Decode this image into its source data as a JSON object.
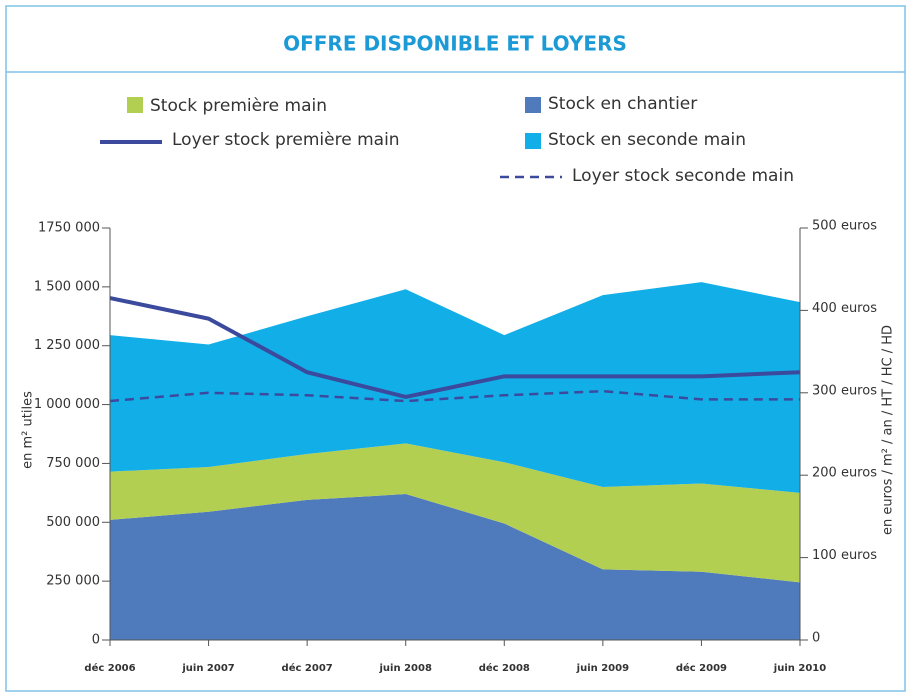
{
  "chart_data": {
    "type": "area",
    "title": "OFFRE DISPONIBLE ET LOYERS",
    "ylabel": "en m² utiles",
    "y2label": "en euros / m² / an / HT / HC / HD",
    "categories": [
      "déc 2006",
      "juin 2007",
      "déc 2007",
      "juin 2008",
      "déc 2008",
      "juin 2009",
      "déc 2009",
      "juin 2010"
    ],
    "stacked": true,
    "series": [
      {
        "name": "Stock en chantier",
        "color": "#4f7bbd",
        "values": [
          510000,
          545000,
          595000,
          620000,
          495000,
          300000,
          290000,
          245000
        ]
      },
      {
        "name": "Stock première main",
        "color": "#b3cf52",
        "values": [
          205000,
          190000,
          195000,
          215000,
          260000,
          350000,
          375000,
          380000
        ]
      },
      {
        "name": "Stock en seconde main",
        "color": "#12aee8",
        "values": [
          580000,
          520000,
          585000,
          655000,
          540000,
          815000,
          855000,
          810000
        ]
      },
      {
        "name": "Loyer stock première main",
        "type": "line",
        "axis": "y2",
        "color": "#3b4a9c",
        "style": "solid",
        "values": [
          415,
          390,
          325,
          295,
          320,
          320,
          320,
          325
        ]
      },
      {
        "name": "Loyer stock seconde main",
        "type": "line",
        "axis": "y2",
        "color": "#3b4a9c",
        "style": "dashed",
        "values": [
          290,
          300,
          297,
          290,
          297,
          302,
          292,
          292
        ]
      }
    ],
    "ylim": [
      0,
      1750000
    ],
    "yticks": [
      0,
      {
        "value": 250000,
        "label": "250 000"
      },
      {
        "value": 500000,
        "label": "500 000"
      },
      {
        "value": 750000,
        "label": "750 000"
      },
      {
        "value": 1000000,
        "label": "1 000 000"
      },
      {
        "value": 1250000,
        "label": "1 250 000"
      },
      {
        "value": 1500000,
        "label": "1 500 000"
      },
      {
        "value": 1750000,
        "label": "1750 000"
      }
    ],
    "y2lim": [
      0,
      500
    ],
    "y2ticks": [
      0,
      {
        "value": 100,
        "label": "100 euros"
      },
      {
        "value": 200,
        "label": "200 euros"
      },
      {
        "value": 300,
        "label": "300 euros"
      },
      {
        "value": 400,
        "label": "400 euros"
      },
      {
        "value": 500,
        "label": "500 euros"
      }
    ],
    "grid": false
  }
}
